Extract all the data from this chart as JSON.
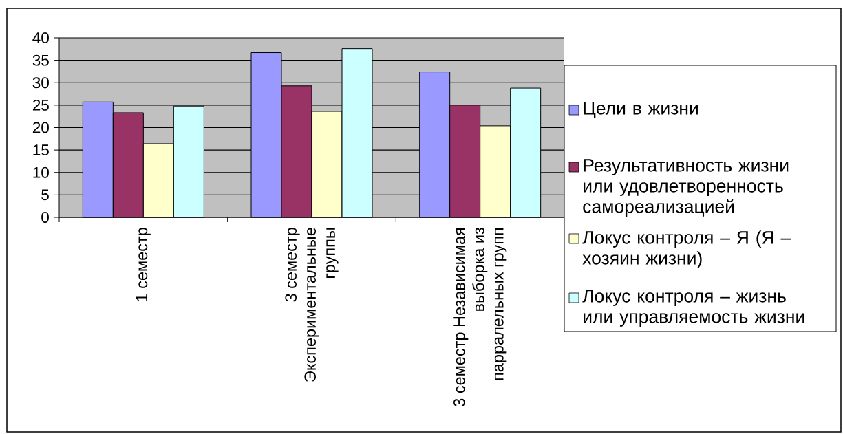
{
  "chart_data": {
    "type": "bar",
    "categories": [
      "1 семестр",
      "3 семестр Экспериментальные группы",
      "3 семестр Независимая выборка из парралельных групп"
    ],
    "series": [
      {
        "name": "Цели в жизни",
        "color": "#9999ff",
        "values": [
          25.7,
          36.7,
          32.4
        ]
      },
      {
        "name": "Результативность жизни или удовлетворенность самореализацией",
        "color": "#993366",
        "values": [
          23.3,
          29.3,
          25.0
        ]
      },
      {
        "name": "Локус контроля – Я (Я – хозяин жизни)",
        "color": "#ffffcc",
        "values": [
          16.4,
          23.6,
          20.4
        ]
      },
      {
        "name": "Локус контроля – жизнь или управляемость жизни",
        "color": "#ccffff",
        "values": [
          24.8,
          37.6,
          28.8
        ]
      }
    ],
    "ylim": [
      0,
      40
    ],
    "yticks": [
      0,
      5,
      10,
      15,
      20,
      25,
      30,
      35,
      40
    ],
    "grid": "y",
    "legend": "right"
  }
}
